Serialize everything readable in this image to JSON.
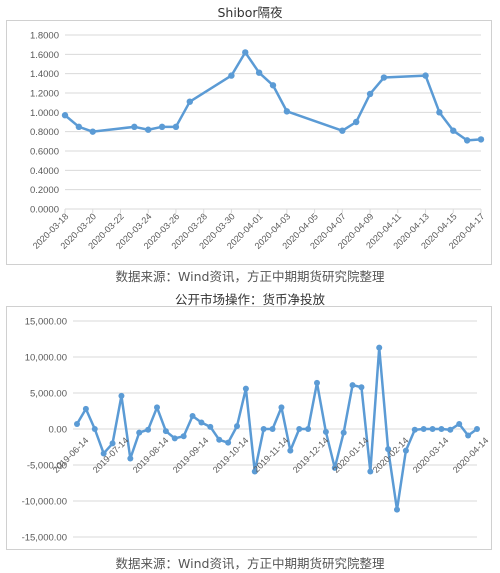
{
  "captions": {
    "source_1": "数据来源：Wind资讯，方正中期期货研究院整理",
    "source_2": "数据来源：Wind资讯，方正中期期货研究院整理"
  },
  "colors": {
    "line": "#5b9bd5",
    "grid": "#d9d9d9",
    "axis_text": "#595959"
  },
  "chart_data": [
    {
      "type": "line",
      "title": "Shibor隔夜",
      "xlabel": "",
      "ylabel": "",
      "ylim": [
        0,
        1.8
      ],
      "grid": true,
      "y_ticks": [
        "0.0000",
        "0.2000",
        "0.4000",
        "0.6000",
        "0.8000",
        "1.0000",
        "1.2000",
        "1.4000",
        "1.6000",
        "1.8000"
      ],
      "x_tick_labels": [
        "2020-03-18",
        "2020-03-20",
        "2020-03-22",
        "2020-03-24",
        "2020-03-26",
        "2020-03-28",
        "2020-03-30",
        "2020-04-01",
        "2020-04-03",
        "2020-04-05",
        "2020-04-07",
        "2020-04-09",
        "2020-04-11",
        "2020-04-13",
        "2020-04-15",
        "2020-04-17"
      ],
      "x_range": [
        "2020-03-18",
        "2020-04-17"
      ],
      "series": [
        {
          "x": [
            "2020-03-18",
            "2020-03-19",
            "2020-03-20",
            "2020-03-23",
            "2020-03-24",
            "2020-03-25",
            "2020-03-26",
            "2020-03-27",
            "2020-03-30",
            "2020-03-31",
            "2020-04-01",
            "2020-04-02",
            "2020-04-03",
            "2020-04-07",
            "2020-04-08",
            "2020-04-09",
            "2020-04-10",
            "2020-04-13",
            "2020-04-14",
            "2020-04-15",
            "2020-04-16",
            "2020-04-17"
          ],
          "values": [
            0.97,
            0.85,
            0.8,
            0.85,
            0.82,
            0.85,
            0.85,
            1.11,
            1.38,
            1.62,
            1.41,
            1.28,
            1.01,
            0.81,
            0.9,
            1.19,
            1.36,
            1.38,
            1.0,
            0.81,
            0.71,
            0.72
          ]
        }
      ]
    },
    {
      "type": "line",
      "title": "公开市场操作：货币净投放",
      "xlabel": "",
      "ylabel": "",
      "ylim": [
        -15000,
        15000
      ],
      "grid": true,
      "y_ticks": [
        "-15,000.00",
        "-10,000.00",
        "-5,000.00",
        "0.00",
        "5,000.00",
        "10,000.00",
        "15,000.00"
      ],
      "x_tick_labels": [
        "2019-06-14",
        "2019-07-14",
        "2019-08-14",
        "2019-09-14",
        "2019-10-14",
        "2019-11-14",
        "2019-12-14",
        "2020-01-14",
        "2020-02-14",
        "2020-03-14",
        "2020-04-14"
      ],
      "series": [
        {
          "values": [
            700,
            2800,
            0,
            -3400,
            -2000,
            4600,
            -4100,
            -500,
            -100,
            3000,
            -300,
            -1300,
            -1000,
            1800,
            900,
            300,
            -1500,
            -1900,
            400,
            5600,
            -5900,
            0,
            0,
            3000,
            -3000,
            0,
            0,
            6400,
            -400,
            -5400,
            -500,
            6100,
            5800,
            -5900,
            11300,
            -2800,
            -11200,
            -3000,
            -100,
            0,
            0,
            0,
            -100,
            700,
            -900,
            0
          ]
        }
      ]
    }
  ]
}
